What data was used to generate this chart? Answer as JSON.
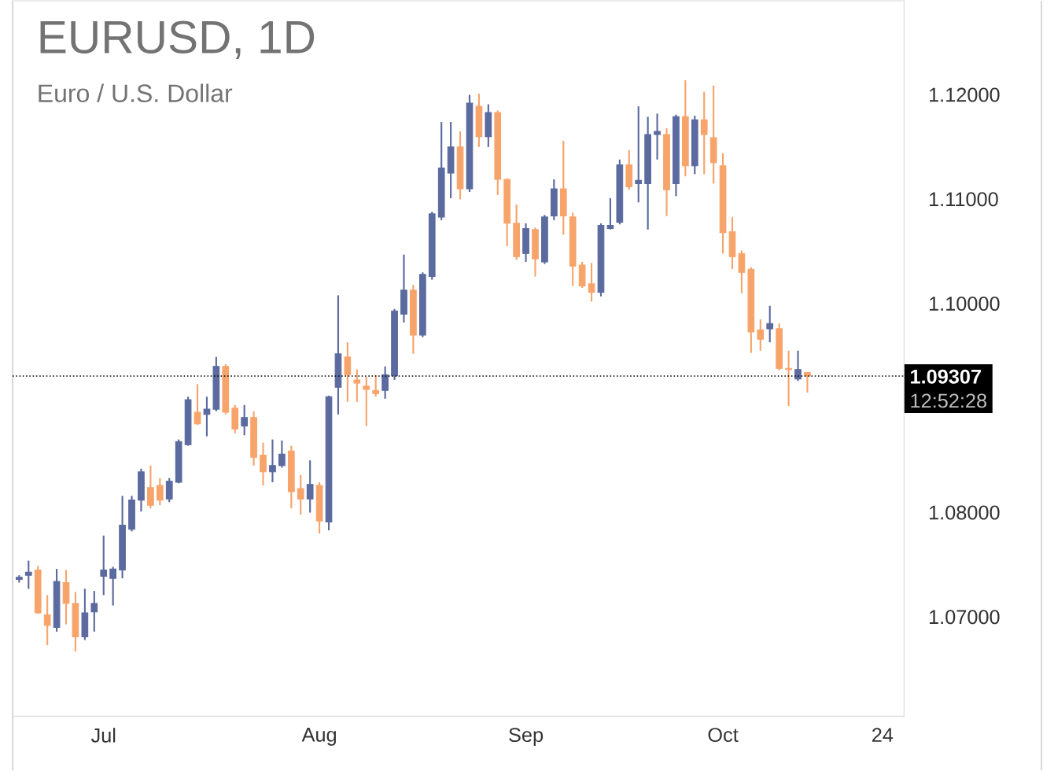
{
  "chart_data": {
    "type": "candlestick",
    "title": "EURUSD, 1D",
    "subtitle": "Euro / U.S. Dollar",
    "categories": [
      null,
      null,
      null,
      null,
      null,
      null,
      null,
      null,
      null,
      "Jul",
      null,
      null,
      null,
      null,
      null,
      null,
      null,
      null,
      null,
      null,
      null,
      null,
      null,
      null,
      null,
      null,
      null,
      null,
      null,
      null,
      null,
      null,
      "Aug",
      null,
      null,
      null,
      null,
      null,
      null,
      null,
      null,
      null,
      null,
      null,
      null,
      null,
      null,
      null,
      null,
      null,
      null,
      null,
      null,
      null,
      "Sep",
      null,
      null,
      null,
      null,
      null,
      null,
      null,
      null,
      null,
      null,
      null,
      null,
      null,
      null,
      null,
      null,
      null,
      null,
      null,
      null,
      "Oct",
      null,
      null,
      null,
      null,
      null,
      null,
      null,
      null,
      null,
      null,
      null,
      null,
      null,
      null,
      null,
      null,
      "24"
    ],
    "ohlc": [
      [
        1.0736,
        1.074,
        1.0733,
        1.0738
      ],
      [
        1.074,
        1.0754,
        1.0727,
        1.0743
      ],
      [
        1.0745,
        1.0749,
        1.0703,
        1.0704
      ],
      [
        1.0702,
        1.0721,
        1.0673,
        1.0692
      ],
      [
        1.069,
        1.0746,
        1.0686,
        1.0734
      ],
      [
        1.0733,
        1.0745,
        1.0693,
        1.0713
      ],
      [
        1.0713,
        1.0724,
        1.0667,
        1.0681
      ],
      [
        1.0681,
        1.0727,
        1.0678,
        1.0704
      ],
      [
        1.0705,
        1.0725,
        1.0686,
        1.0713
      ],
      [
        1.0739,
        1.0778,
        1.0721,
        1.0745
      ],
      [
        1.0737,
        1.0748,
        1.0711,
        1.0746
      ],
      [
        1.0745,
        1.0816,
        1.0737,
        1.0788
      ],
      [
        1.0784,
        1.0816,
        1.0782,
        1.0812
      ],
      [
        1.0812,
        1.0842,
        1.0801,
        1.0839
      ],
      [
        1.0824,
        1.0845,
        1.0804,
        1.0807
      ],
      [
        1.0826,
        1.0833,
        1.0807,
        1.0812
      ],
      [
        1.0813,
        1.0833,
        1.081,
        1.083
      ],
      [
        1.0829,
        1.087,
        1.0828,
        1.0868
      ],
      [
        1.0865,
        1.0911,
        1.0864,
        1.0908
      ],
      [
        1.0896,
        1.0923,
        1.0884,
        1.0885
      ],
      [
        1.0894,
        1.0911,
        1.0873,
        1.0899
      ],
      [
        1.0899,
        1.0949,
        1.0897,
        1.094
      ],
      [
        1.094,
        1.0942,
        1.0894,
        1.0896
      ],
      [
        1.09,
        1.0903,
        1.0876,
        1.088
      ],
      [
        1.0883,
        1.0903,
        1.0874,
        1.0891
      ],
      [
        1.0891,
        1.0897,
        1.0845,
        1.0853
      ],
      [
        1.0855,
        1.0867,
        1.0826,
        1.0839
      ],
      [
        1.0839,
        1.087,
        1.0829,
        1.0845
      ],
      [
        1.0845,
        1.0869,
        1.0843,
        1.0856
      ],
      [
        1.0859,
        1.0864,
        1.0804,
        1.082
      ],
      [
        1.0823,
        1.0836,
        1.0798,
        1.0813
      ],
      [
        1.0813,
        1.085,
        1.08,
        1.0827
      ],
      [
        1.0826,
        1.0829,
        1.078,
        1.0792
      ],
      [
        1.0791,
        1.0912,
        1.0783,
        1.0911
      ],
      [
        1.092,
        1.1008,
        1.0894,
        1.0952
      ],
      [
        1.0949,
        1.0963,
        1.0906,
        1.0932
      ],
      [
        1.0927,
        1.0937,
        1.0906,
        1.0924
      ],
      [
        1.0921,
        1.093,
        1.0883,
        1.0918
      ],
      [
        1.0917,
        1.0932,
        1.0911,
        1.0914
      ],
      [
        1.0917,
        1.094,
        1.0909,
        1.0932
      ],
      [
        1.0931,
        1.0995,
        1.0927,
        1.0993
      ],
      [
        1.099,
        1.1047,
        1.0982,
        1.1013
      ],
      [
        1.1013,
        1.1018,
        1.0952,
        1.097
      ],
      [
        1.097,
        1.103,
        1.0968,
        1.1028
      ],
      [
        1.1026,
        1.1088,
        1.1023,
        1.1086
      ],
      [
        1.1083,
        1.1174,
        1.108,
        1.113
      ],
      [
        1.1125,
        1.1174,
        1.1101,
        1.115
      ],
      [
        1.115,
        1.1165,
        1.11,
        1.111
      ],
      [
        1.111,
        1.12,
        1.1107,
        1.1192
      ],
      [
        1.1189,
        1.1201,
        1.115,
        1.116
      ],
      [
        1.116,
        1.1191,
        1.115,
        1.1183
      ],
      [
        1.1183,
        1.1185,
        1.1104,
        1.1119
      ],
      [
        1.1119,
        1.112,
        1.1055,
        1.1077
      ],
      [
        1.1077,
        1.1095,
        1.1042,
        1.1045
      ],
      [
        1.1048,
        1.1077,
        1.104,
        1.1072
      ],
      [
        1.1071,
        1.1073,
        1.1026,
        1.1043
      ],
      [
        1.104,
        1.1085,
        1.1038,
        1.1083
      ],
      [
        1.1084,
        1.1119,
        1.108,
        1.111
      ],
      [
        1.111,
        1.1156,
        1.1066,
        1.1084
      ],
      [
        1.1083,
        1.1087,
        1.1017,
        1.1036
      ],
      [
        1.1037,
        1.104,
        1.1015,
        1.1017
      ],
      [
        1.1019,
        1.1039,
        1.1002,
        1.1011
      ],
      [
        1.1011,
        1.1077,
        1.1007,
        1.1075
      ],
      [
        1.1072,
        1.1101,
        1.1071,
        1.1075
      ],
      [
        1.1078,
        1.1138,
        1.1076,
        1.1133
      ],
      [
        1.1133,
        1.1147,
        1.1109,
        1.1112
      ],
      [
        1.1115,
        1.1189,
        1.1097,
        1.1118
      ],
      [
        1.1115,
        1.1179,
        1.1071,
        1.1162
      ],
      [
        1.1162,
        1.1182,
        1.1138,
        1.1165
      ],
      [
        1.1162,
        1.1168,
        1.1084,
        1.1109
      ],
      [
        1.1115,
        1.1181,
        1.1103,
        1.1179
      ],
      [
        1.1179,
        1.1214,
        1.1122,
        1.1132
      ],
      [
        1.1132,
        1.118,
        1.1124,
        1.1176
      ],
      [
        1.1176,
        1.1203,
        1.1124,
        1.1162
      ],
      [
        1.1159,
        1.1209,
        1.1115,
        1.1135
      ],
      [
        1.1132,
        1.1144,
        1.1048,
        1.1068
      ],
      [
        1.1069,
        1.1083,
        1.1033,
        1.1045
      ],
      [
        1.1048,
        1.1051,
        1.101,
        1.103
      ],
      [
        1.1033,
        1.1035,
        1.0953,
        1.0973
      ],
      [
        1.0975,
        1.0985,
        1.0955,
        1.0966
      ],
      [
        1.0976,
        1.0998,
        1.0963,
        1.0981
      ],
      [
        1.0976,
        1.0981,
        1.0936,
        1.0938
      ],
      [
        1.0938,
        1.0955,
        1.0902,
        1.0937
      ],
      [
        1.0928,
        1.0955,
        1.0926,
        1.0937
      ],
      [
        1.0934,
        1.0934,
        1.0915,
        1.09307
      ],
      null,
      null,
      null,
      null,
      null,
      null,
      null,
      null
    ],
    "colors": [
      "#5b6a9f",
      "#5b6a9f",
      "#f7a46b",
      "#f7a46b",
      "#5b6a9f",
      "#f7a46b",
      "#f7a46b",
      "#5b6a9f",
      "#5b6a9f",
      "#5b6a9f",
      "#5b6a9f",
      "#5b6a9f",
      "#5b6a9f",
      "#5b6a9f",
      "#f7a46b",
      "#f7a46b",
      "#5b6a9f",
      "#5b6a9f",
      "#5b6a9f",
      "#f7a46b",
      "#5b6a9f",
      "#5b6a9f",
      "#f7a46b",
      "#f7a46b",
      "#5b6a9f",
      "#f7a46b",
      "#f7a46b",
      "#5b6a9f",
      "#5b6a9f",
      "#f7a46b",
      "#f7a46b",
      "#5b6a9f",
      "#f7a46b",
      "#5b6a9f",
      "#5b6a9f",
      "#f7a46b",
      "#f7a46b",
      "#f7a46b",
      "#f7a46b",
      "#5b6a9f",
      "#5b6a9f",
      "#5b6a9f",
      "#f7a46b",
      "#5b6a9f",
      "#5b6a9f",
      "#5b6a9f",
      "#5b6a9f",
      "#f7a46b",
      "#5b6a9f",
      "#f7a46b",
      "#5b6a9f",
      "#f7a46b",
      "#f7a46b",
      "#f7a46b",
      "#5b6a9f",
      "#f7a46b",
      "#5b6a9f",
      "#5b6a9f",
      "#f7a46b",
      "#f7a46b",
      "#f7a46b",
      "#f7a46b",
      "#5b6a9f",
      "#5b6a9f",
      "#5b6a9f",
      "#f7a46b",
      "#5b6a9f",
      "#5b6a9f",
      "#5b6a9f",
      "#f7a46b",
      "#5b6a9f",
      "#f7a46b",
      "#5b6a9f",
      "#f7a46b",
      "#f7a46b",
      "#f7a46b",
      "#f7a46b",
      "#f7a46b",
      "#f7a46b",
      "#f7a46b",
      "#5b6a9f",
      "#f7a46b",
      "#f7a46b",
      "#5b6a9f",
      "#f7a46b",
      null,
      null,
      null,
      null,
      null,
      null,
      null,
      null
    ],
    "ylim": [
      1.0605,
      1.129
    ],
    "yticks": [
      {
        "value": 1.07,
        "label": "1.07000"
      },
      {
        "value": 1.08,
        "label": "1.08000"
      },
      {
        "value": 1.1,
        "label": "1.10000"
      },
      {
        "value": 1.11,
        "label": "1.11000"
      },
      {
        "value": 1.12,
        "label": "1.12000"
      }
    ],
    "ref_lines": [
      {
        "axis": "y",
        "value": 1.09307,
        "label": "1.09307",
        "color": "#000000",
        "line_style": "dotted"
      }
    ],
    "annotations": [
      "12:52:28"
    ]
  }
}
